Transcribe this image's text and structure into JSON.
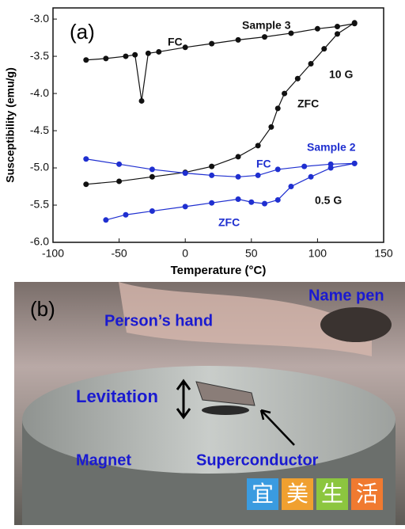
{
  "chart_data": {
    "type": "line",
    "panel_label": "(a)",
    "xlabel": "Temperature (°C)",
    "ylabel": "Susceptibility (emu/g)",
    "xlim": [
      -100,
      150
    ],
    "xticks": [
      -100,
      -50,
      0,
      50,
      100,
      150
    ],
    "ylim": [
      -6,
      -2.85
    ],
    "yticks": [
      {
        "value": -3,
        "label": "-3.0"
      },
      {
        "value": -3.5,
        "label": "-3.5"
      },
      {
        "value": -4,
        "label": "-4.0"
      },
      {
        "value": -4.5,
        "label": "-4.5"
      },
      {
        "value": -5,
        "label": "-5.0"
      },
      {
        "value": -5.5,
        "label": "-5.5"
      },
      {
        "value": -6,
        "label": "-6.0"
      }
    ],
    "annotations": [
      "Sample 3",
      "10 G",
      "Sample 2",
      "0.5 G"
    ],
    "series": [
      {
        "name": "FC",
        "color": "#111111",
        "x": [
          -75,
          -60,
          -45,
          -38,
          -33,
          -28,
          -20,
          0,
          20,
          40,
          60,
          80,
          100,
          115,
          128
        ],
        "values": [
          -3.55,
          -3.53,
          -3.5,
          -3.48,
          -4.1,
          -3.46,
          -3.44,
          -3.38,
          -3.33,
          -3.28,
          -3.24,
          -3.19,
          -3.13,
          -3.1,
          -3.06
        ]
      },
      {
        "name": "ZFC",
        "color": "#111111",
        "x": [
          -75,
          -50,
          -25,
          0,
          20,
          40,
          55,
          65,
          70,
          75,
          85,
          95,
          105,
          115,
          128
        ],
        "values": [
          -5.22,
          -5.18,
          -5.12,
          -5.06,
          -4.98,
          -4.85,
          -4.7,
          -4.45,
          -4.2,
          -4.0,
          -3.8,
          -3.6,
          -3.4,
          -3.2,
          -3.05
        ]
      },
      {
        "name": "FC",
        "color": "#1f2fd0",
        "x": [
          -75,
          -50,
          -25,
          0,
          20,
          40,
          55,
          70,
          90,
          110,
          128
        ],
        "values": [
          -4.88,
          -4.95,
          -5.02,
          -5.07,
          -5.1,
          -5.12,
          -5.1,
          -5.02,
          -4.98,
          -4.95,
          -4.94
        ]
      },
      {
        "name": "ZFC",
        "color": "#1f2fd0",
        "x": [
          -60,
          -45,
          -25,
          0,
          20,
          40,
          50,
          60,
          70,
          80,
          95,
          110,
          128
        ],
        "values": [
          -5.7,
          -5.63,
          -5.58,
          -5.52,
          -5.47,
          -5.42,
          -5.46,
          -5.48,
          -5.43,
          -5.25,
          -5.12,
          -5.0,
          -4.94
        ]
      }
    ]
  },
  "photo": {
    "panel_label": "(b)",
    "labels": [
      "Name pen",
      "Person’s hand",
      "Levitation",
      "Magnet",
      "Superconductor"
    ],
    "watermark": [
      "宜",
      "美",
      "生",
      "活"
    ]
  }
}
